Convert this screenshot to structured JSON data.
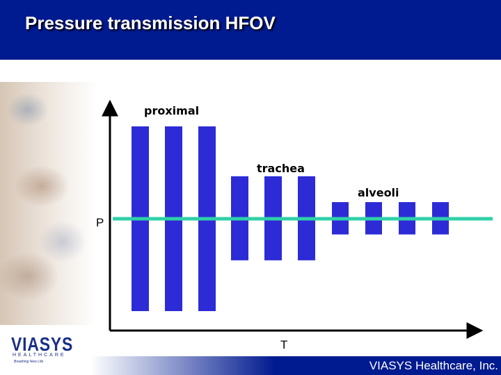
{
  "title": "Pressure transmission HFOV",
  "labels": {
    "proximal": "proximal",
    "trachea": "trachea",
    "alveoli": "alveoli",
    "y_axis": "P",
    "x_axis": "T"
  },
  "logo": {
    "word": "VIASYS",
    "sub": "HEALTHCARE",
    "tagline": "Breathing New Life"
  },
  "footer": "VIASYS Healthcare, Inc.",
  "colors": {
    "title_bar": "#001a8f",
    "bars": "#2d2bd6",
    "baseline": "#2fd0a8"
  },
  "diagram_data": {
    "groups": [
      {
        "name": "proximal",
        "count": 3,
        "amplitude_up": 1.0,
        "amplitude_down": 1.0
      },
      {
        "name": "trachea",
        "count": 3,
        "amplitude_up": 0.46,
        "amplitude_down": 0.45
      },
      {
        "name": "alveoli",
        "count": 4,
        "amplitude_up": 0.18,
        "amplitude_down": 0.17
      }
    ]
  }
}
